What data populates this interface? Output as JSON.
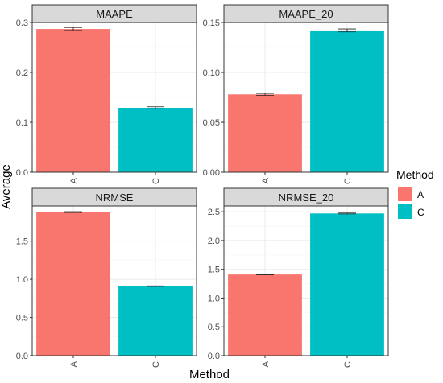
{
  "chart_data": {
    "type": "bar",
    "facet_layout": "2x2 grid",
    "xlabel": "Method",
    "ylabel": "Average",
    "grid": true,
    "legend": {
      "title": "Method",
      "placement": "right",
      "entries": [
        {
          "label": "A",
          "color": "#F8766D"
        },
        {
          "label": "C",
          "color": "#00BFC4"
        }
      ]
    },
    "panels": [
      {
        "title": "MAAPE",
        "categories": [
          "A",
          "C"
        ],
        "values": [
          0.287,
          0.129
        ],
        "errors": [
          0.003,
          0.002
        ],
        "ylim": [
          0,
          0.3
        ],
        "yticks": [
          "0.0",
          "0.1",
          "0.2",
          "0.3"
        ]
      },
      {
        "title": "MAAPE_20",
        "categories": [
          "A",
          "C"
        ],
        "values": [
          0.078,
          0.142
        ],
        "errors": [
          0.001,
          0.0015
        ],
        "ylim": [
          0,
          0.15
        ],
        "yticks": [
          "0.00",
          "0.05",
          "0.10",
          "0.15"
        ]
      },
      {
        "title": "NRMSE",
        "categories": [
          "A",
          "C"
        ],
        "values": [
          1.88,
          0.91
        ],
        "errors": [
          0.006,
          0.004
        ],
        "ylim": [
          0,
          1.96
        ],
        "yticks": [
          "0.0",
          "0.5",
          "1.0",
          "1.5"
        ]
      },
      {
        "title": "NRMSE_20",
        "categories": [
          "A",
          "C"
        ],
        "values": [
          1.41,
          2.47
        ],
        "errors": [
          0.006,
          0.008
        ],
        "ylim": [
          0,
          2.6
        ],
        "yticks": [
          "0.0",
          "0.5",
          "1.0",
          "1.5",
          "2.0",
          "2.5"
        ]
      }
    ]
  }
}
